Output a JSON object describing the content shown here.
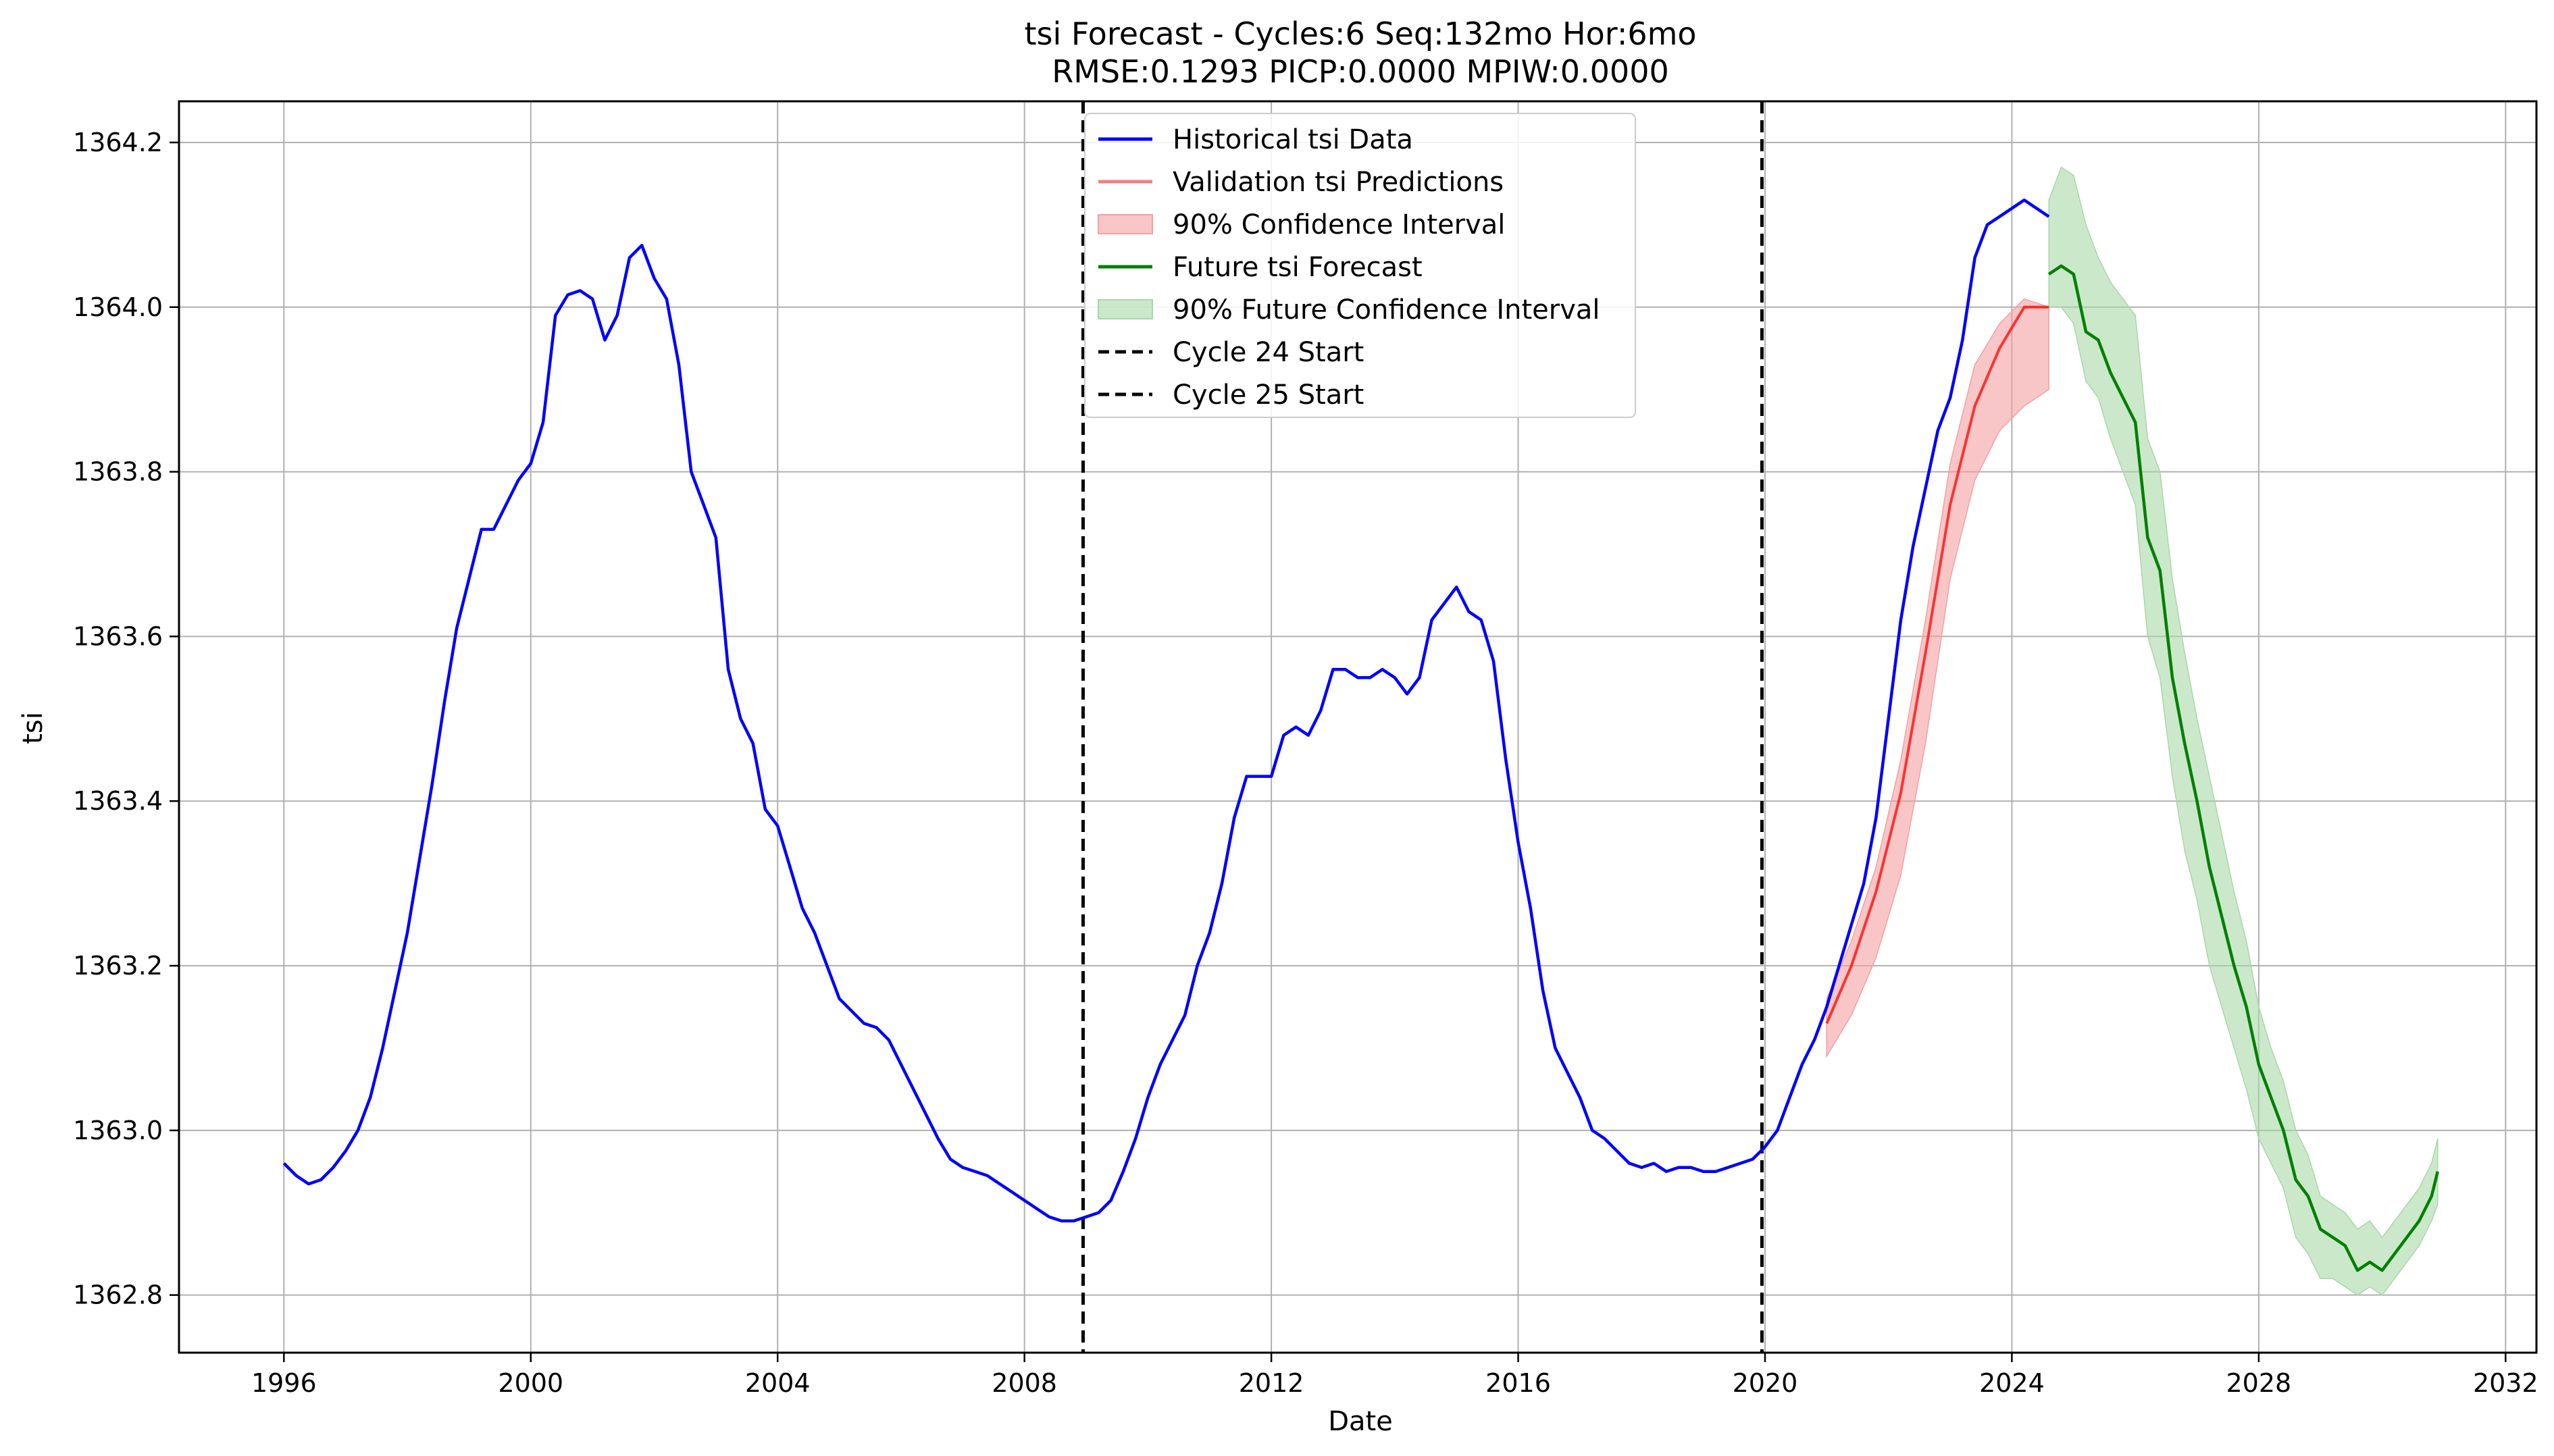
{
  "chart_data": {
    "type": "line",
    "title": "tsi Forecast - Cycles:6 Seq:132mo Hor:6mo",
    "subtitle": "RMSE:0.1293 PICP:0.0000 MPIW:0.0000",
    "xlabel": "Date",
    "ylabel": "tsi",
    "xlim": [
      1994.3,
      2032.5
    ],
    "ylim": [
      1362.73,
      1364.25
    ],
    "x_ticks": [
      1996,
      2000,
      2004,
      2008,
      2012,
      2016,
      2020,
      2024,
      2028,
      2032
    ],
    "y_ticks": [
      1362.8,
      1363.0,
      1363.2,
      1363.4,
      1363.6,
      1363.8,
      1364.0,
      1364.2
    ],
    "y_tick_labels": [
      "1362.8",
      "1363.0",
      "1363.2",
      "1363.4",
      "1363.6",
      "1363.8",
      "1364.0",
      "1364.2"
    ],
    "grid": true,
    "legend_position": "top-center",
    "colors": {
      "historical": "#0000ff",
      "validation": "#ff0000",
      "validation_ci": "#f4a0a0",
      "forecast": "#008000",
      "forecast_ci": "#a8d8a8",
      "cycle_line": "#000000"
    },
    "legend": [
      {
        "label": "Historical tsi Data",
        "kind": "line",
        "color": "#0000ff"
      },
      {
        "label": "Validation tsi Predictions",
        "kind": "line",
        "color": "#f08080"
      },
      {
        "label": "90% Confidence Interval",
        "kind": "patch",
        "color": "#f4a0a0"
      },
      {
        "label": "Future tsi Forecast",
        "kind": "line",
        "color": "#008000"
      },
      {
        "label": "90% Future Confidence Interval",
        "kind": "patch",
        "color": "#a8d8a8"
      },
      {
        "label": "Cycle 24 Start",
        "kind": "dashed",
        "color": "#000000"
      },
      {
        "label": "Cycle 25 Start",
        "kind": "dashed",
        "color": "#000000"
      }
    ],
    "cycle_starts": [
      {
        "name": "Cycle 24 Start",
        "x": 2008.95
      },
      {
        "name": "Cycle 25 Start",
        "x": 2019.95
      }
    ],
    "series": [
      {
        "name": "Historical tsi Data",
        "x": [
          1996.0,
          1996.2,
          1996.4,
          1996.6,
          1996.8,
          1997.0,
          1997.2,
          1997.4,
          1997.6,
          1997.8,
          1998.0,
          1998.2,
          1998.4,
          1998.6,
          1998.8,
          1999.0,
          1999.2,
          1999.4,
          1999.6,
          1999.8,
          2000.0,
          2000.2,
          2000.4,
          2000.6,
          2000.8,
          2001.0,
          2001.2,
          2001.4,
          2001.6,
          2001.8,
          2002.0,
          2002.2,
          2002.4,
          2002.6,
          2002.8,
          2003.0,
          2003.2,
          2003.4,
          2003.6,
          2003.8,
          2004.0,
          2004.2,
          2004.4,
          2004.6,
          2004.8,
          2005.0,
          2005.2,
          2005.4,
          2005.6,
          2005.8,
          2006.0,
          2006.2,
          2006.4,
          2006.6,
          2006.8,
          2007.0,
          2007.2,
          2007.4,
          2007.6,
          2007.8,
          2008.0,
          2008.2,
          2008.4,
          2008.6,
          2008.8,
          2009.0,
          2009.2,
          2009.4,
          2009.6,
          2009.8,
          2010.0,
          2010.2,
          2010.4,
          2010.6,
          2010.8,
          2011.0,
          2011.2,
          2011.4,
          2011.6,
          2011.8,
          2012.0,
          2012.2,
          2012.4,
          2012.6,
          2012.8,
          2013.0,
          2013.2,
          2013.4,
          2013.6,
          2013.8,
          2014.0,
          2014.2,
          2014.4,
          2014.6,
          2014.8,
          2015.0,
          2015.2,
          2015.4,
          2015.6,
          2015.8,
          2016.0,
          2016.2,
          2016.4,
          2016.6,
          2016.8,
          2017.0,
          2017.2,
          2017.4,
          2017.6,
          2017.8,
          2018.0,
          2018.2,
          2018.4,
          2018.6,
          2018.8,
          2019.0,
          2019.2,
          2019.4,
          2019.6,
          2019.8,
          2020.0,
          2020.2,
          2020.4,
          2020.6,
          2020.8,
          2021.0,
          2021.2,
          2021.4,
          2021.6,
          2021.8,
          2022.0,
          2022.2,
          2022.4,
          2022.6,
          2022.8,
          2023.0,
          2023.2,
          2023.4,
          2023.6,
          2023.8,
          2024.0,
          2024.2,
          2024.4,
          2024.6
        ],
        "y": [
          1362.96,
          1362.945,
          1362.935,
          1362.94,
          1362.955,
          1362.975,
          1363.0,
          1363.04,
          1363.1,
          1363.17,
          1363.24,
          1363.33,
          1363.42,
          1363.52,
          1363.61,
          1363.67,
          1363.73,
          1363.73,
          1363.76,
          1363.79,
          1363.81,
          1363.86,
          1363.99,
          1364.015,
          1364.02,
          1364.01,
          1363.96,
          1363.99,
          1364.06,
          1364.075,
          1364.035,
          1364.01,
          1363.93,
          1363.8,
          1363.76,
          1363.72,
          1363.56,
          1363.5,
          1363.47,
          1363.39,
          1363.37,
          1363.32,
          1363.27,
          1363.24,
          1363.2,
          1363.16,
          1363.145,
          1363.13,
          1363.125,
          1363.11,
          1363.08,
          1363.05,
          1363.02,
          1362.99,
          1362.965,
          1362.955,
          1362.95,
          1362.945,
          1362.935,
          1362.925,
          1362.915,
          1362.905,
          1362.895,
          1362.89,
          1362.89,
          1362.895,
          1362.9,
          1362.915,
          1362.95,
          1362.99,
          1363.04,
          1363.08,
          1363.11,
          1363.14,
          1363.2,
          1363.24,
          1363.3,
          1363.38,
          1363.43,
          1363.43,
          1363.43,
          1363.48,
          1363.49,
          1363.48,
          1363.51,
          1363.56,
          1363.56,
          1363.55,
          1363.55,
          1363.56,
          1363.55,
          1363.53,
          1363.55,
          1363.62,
          1363.64,
          1363.66,
          1363.63,
          1363.62,
          1363.57,
          1363.45,
          1363.35,
          1363.27,
          1363.17,
          1363.1,
          1363.07,
          1363.04,
          1363.0,
          1362.99,
          1362.975,
          1362.96,
          1362.955,
          1362.96,
          1362.95,
          1362.955,
          1362.955,
          1362.95,
          1362.95,
          1362.955,
          1362.96,
          1362.965,
          1362.98,
          1363.0,
          1363.04,
          1363.08,
          1363.11,
          1363.15,
          1363.2,
          1363.25,
          1363.3,
          1363.38,
          1363.5,
          1363.62,
          1363.71,
          1363.78,
          1363.85,
          1363.89,
          1363.96,
          1364.06,
          1364.1,
          1364.11,
          1364.12,
          1364.13,
          1364.12,
          1364.11
        ]
      },
      {
        "name": "Validation tsi Predictions",
        "x": [
          2021.0,
          2021.4,
          2021.8,
          2022.2,
          2022.6,
          2023.0,
          2023.4,
          2023.8,
          2024.2,
          2024.6
        ],
        "y": [
          1363.13,
          1363.2,
          1363.29,
          1363.41,
          1363.58,
          1363.76,
          1363.88,
          1363.95,
          1364.0,
          1364.0
        ],
        "ci_lower": [
          1363.09,
          1363.14,
          1363.21,
          1363.31,
          1363.47,
          1363.67,
          1363.79,
          1363.85,
          1363.88,
          1363.9
        ],
        "ci_upper": [
          1363.16,
          1363.23,
          1363.32,
          1363.45,
          1363.62,
          1363.81,
          1363.93,
          1363.98,
          1364.01,
          1364.0
        ]
      },
      {
        "name": "Future tsi Forecast",
        "x": [
          2024.6,
          2024.8,
          2025.0,
          2025.2,
          2025.4,
          2025.6,
          2025.8,
          2026.0,
          2026.2,
          2026.4,
          2026.6,
          2026.8,
          2027.0,
          2027.2,
          2027.4,
          2027.6,
          2027.8,
          2028.0,
          2028.2,
          2028.4,
          2028.6,
          2028.8,
          2029.0,
          2029.2,
          2029.4,
          2029.6,
          2029.8,
          2030.0,
          2030.2,
          2030.4,
          2030.6,
          2030.8,
          2030.9
        ],
        "y": [
          1364.04,
          1364.05,
          1364.04,
          1363.97,
          1363.96,
          1363.92,
          1363.89,
          1363.86,
          1363.72,
          1363.68,
          1363.55,
          1363.47,
          1363.4,
          1363.32,
          1363.26,
          1363.2,
          1363.15,
          1363.08,
          1363.04,
          1363.0,
          1362.94,
          1362.92,
          1362.88,
          1362.87,
          1362.86,
          1362.83,
          1362.84,
          1362.83,
          1362.85,
          1362.87,
          1362.89,
          1362.92,
          1362.95
        ],
        "ci_lower": [
          1364.0,
          1364.0,
          1363.98,
          1363.91,
          1363.89,
          1363.84,
          1363.8,
          1363.76,
          1363.6,
          1363.55,
          1363.43,
          1363.34,
          1363.28,
          1363.2,
          1363.15,
          1363.1,
          1363.05,
          1362.99,
          1362.96,
          1362.93,
          1362.87,
          1362.85,
          1362.82,
          1362.82,
          1362.81,
          1362.8,
          1362.81,
          1362.8,
          1362.82,
          1362.84,
          1362.86,
          1362.89,
          1362.91
        ],
        "ci_upper": [
          1364.13,
          1364.17,
          1364.16,
          1364.1,
          1364.06,
          1364.03,
          1364.01,
          1363.99,
          1363.84,
          1363.8,
          1363.67,
          1363.58,
          1363.5,
          1363.43,
          1363.36,
          1363.29,
          1363.23,
          1363.15,
          1363.1,
          1363.06,
          1363.0,
          1362.97,
          1362.92,
          1362.91,
          1362.9,
          1362.88,
          1362.89,
          1362.87,
          1362.89,
          1362.91,
          1362.93,
          1362.96,
          1362.99
        ]
      }
    ]
  }
}
